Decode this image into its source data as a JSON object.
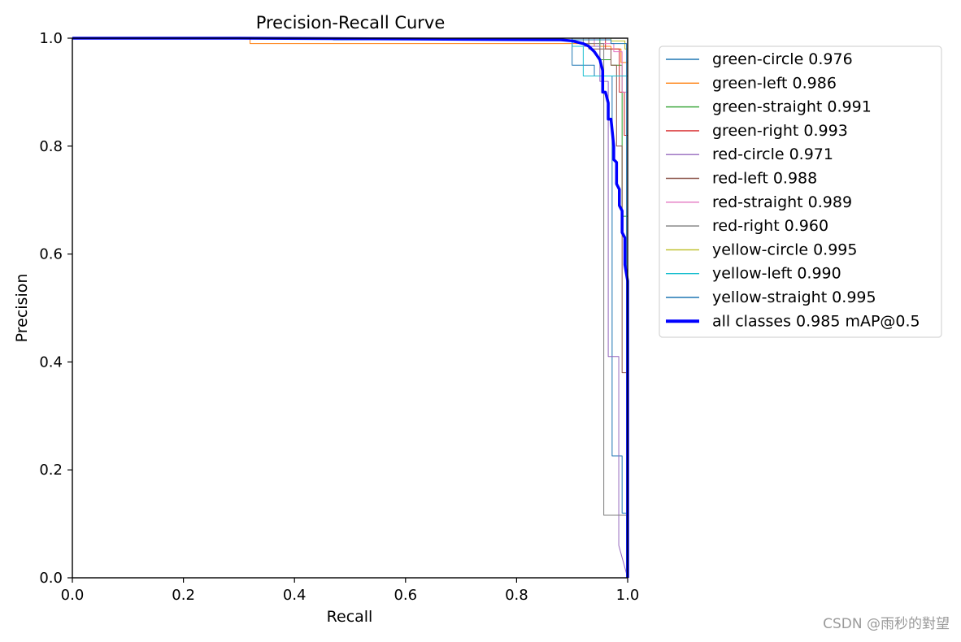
{
  "chart_data": {
    "type": "line",
    "title": "Precision-Recall Curve",
    "xlabel": "Recall",
    "ylabel": "Precision",
    "xlim": [
      0,
      1
    ],
    "ylim": [
      0,
      1
    ],
    "xticks": [
      "0.0",
      "0.2",
      "0.4",
      "0.6",
      "0.8",
      "1.0"
    ],
    "yticks": [
      "0.0",
      "0.2",
      "0.4",
      "0.6",
      "0.8",
      "1.0"
    ],
    "grid": false,
    "legend_position": "outside-right",
    "series": [
      {
        "name": "green-circle",
        "label": "green-circle 0.976",
        "color": "#1f77b4",
        "width": 1,
        "points": [
          [
            0,
            1
          ],
          [
            0.9,
            1
          ],
          [
            0.9,
            0.95
          ],
          [
            0.94,
            0.95
          ],
          [
            0.94,
            0.93
          ],
          [
            0.972,
            0.93
          ],
          [
            0.972,
            0.226
          ],
          [
            0.99,
            0.226
          ],
          [
            0.99,
            0.12
          ],
          [
            1,
            0.12
          ],
          [
            1,
            0
          ]
        ]
      },
      {
        "name": "green-left",
        "label": "green-left 0.986",
        "color": "#ff7f0e",
        "width": 1,
        "points": [
          [
            0,
            1
          ],
          [
            0.32,
            1
          ],
          [
            0.32,
            0.99
          ],
          [
            0.94,
            0.99
          ],
          [
            0.94,
            0.985
          ],
          [
            0.97,
            0.985
          ],
          [
            0.97,
            0.98
          ],
          [
            0.988,
            0.98
          ],
          [
            0.988,
            0.955
          ],
          [
            1,
            0.955
          ],
          [
            1,
            0
          ]
        ]
      },
      {
        "name": "green-straight",
        "label": "green-straight 0.991",
        "color": "#2ca02c",
        "width": 1,
        "points": [
          [
            0,
            1
          ],
          [
            0.95,
            1
          ],
          [
            0.95,
            0.96
          ],
          [
            0.97,
            0.96
          ],
          [
            0.97,
            0.95
          ],
          [
            0.99,
            0.95
          ],
          [
            0.99,
            0.67
          ],
          [
            1,
            0.67
          ],
          [
            1,
            0
          ]
        ]
      },
      {
        "name": "green-right",
        "label": "green-right 0.993",
        "color": "#d62728",
        "width": 1,
        "points": [
          [
            0,
            1
          ],
          [
            0.96,
            1
          ],
          [
            0.96,
            0.98
          ],
          [
            0.985,
            0.98
          ],
          [
            0.985,
            0.9
          ],
          [
            0.994,
            0.9
          ],
          [
            0.994,
            0.82
          ],
          [
            1,
            0.82
          ],
          [
            1,
            0
          ]
        ]
      },
      {
        "name": "red-circle",
        "label": "red-circle 0.971",
        "color": "#9467bd",
        "width": 1,
        "points": [
          [
            0,
            1
          ],
          [
            0.9,
            1
          ],
          [
            0.9,
            0.985
          ],
          [
            0.95,
            0.985
          ],
          [
            0.95,
            0.92
          ],
          [
            0.965,
            0.92
          ],
          [
            0.965,
            0.41
          ],
          [
            0.984,
            0.41
          ],
          [
            0.984,
            0.06
          ],
          [
            1,
            0.0
          ]
        ]
      },
      {
        "name": "red-left",
        "label": "red-left 0.988",
        "color": "#8c564b",
        "width": 1,
        "points": [
          [
            0,
            1
          ],
          [
            0.93,
            1
          ],
          [
            0.93,
            0.98
          ],
          [
            0.97,
            0.98
          ],
          [
            0.97,
            0.95
          ],
          [
            0.98,
            0.95
          ],
          [
            0.98,
            0.8
          ],
          [
            0.99,
            0.8
          ],
          [
            0.99,
            0.38
          ],
          [
            1,
            0.38
          ],
          [
            1,
            0
          ]
        ]
      },
      {
        "name": "red-straight",
        "label": "red-straight 0.989",
        "color": "#e377c2",
        "width": 1,
        "points": [
          [
            0,
            1
          ],
          [
            0.94,
            1
          ],
          [
            0.94,
            0.99
          ],
          [
            0.975,
            0.99
          ],
          [
            0.975,
            0.975
          ],
          [
            0.99,
            0.975
          ],
          [
            0.99,
            0.9
          ],
          [
            1,
            0.9
          ],
          [
            1,
            0
          ]
        ]
      },
      {
        "name": "red-right",
        "label": "red-right 0.960",
        "color": "#7f7f7f",
        "width": 1,
        "points": [
          [
            0,
            1
          ],
          [
            0.92,
            1
          ],
          [
            0.92,
            0.99
          ],
          [
            0.957,
            0.99
          ],
          [
            0.957,
            0.116
          ],
          [
            0.998,
            0.116
          ],
          [
            0.998,
            0
          ],
          [
            1,
            0
          ]
        ]
      },
      {
        "name": "yellow-circle",
        "label": "yellow-circle 0.995",
        "color": "#bcbd22",
        "width": 1,
        "points": [
          [
            0,
            1
          ],
          [
            0.97,
            1
          ],
          [
            0.97,
            0.995
          ],
          [
            0.995,
            0.995
          ],
          [
            0.995,
            0.98
          ],
          [
            1,
            0.98
          ],
          [
            1,
            0
          ]
        ]
      },
      {
        "name": "yellow-left",
        "label": "yellow-left 0.990",
        "color": "#17becf",
        "width": 1,
        "points": [
          [
            0,
            1
          ],
          [
            0.9,
            1
          ],
          [
            0.9,
            0.985
          ],
          [
            0.92,
            0.985
          ],
          [
            0.92,
            0.93
          ],
          [
            1,
            0.93
          ],
          [
            1,
            0
          ]
        ]
      },
      {
        "name": "yellow-straight",
        "label": "yellow-straight 0.995",
        "color": "#1f77b4",
        "width": 1,
        "points": [
          [
            0,
            1
          ],
          [
            0.47,
            1
          ],
          [
            0.47,
            0.997
          ],
          [
            0.97,
            0.997
          ],
          [
            0.97,
            0.99
          ],
          [
            0.998,
            0.99
          ],
          [
            0.998,
            0
          ],
          [
            1,
            0
          ]
        ]
      },
      {
        "name": "all-classes",
        "label": "all classes 0.985 mAP@0.5",
        "color": "#0000ff",
        "width": 3.5,
        "points": [
          [
            0,
            1
          ],
          [
            0.3,
            1
          ],
          [
            0.5,
            0.999
          ],
          [
            0.7,
            0.998
          ],
          [
            0.88,
            0.997
          ],
          [
            0.9,
            0.995
          ],
          [
            0.92,
            0.99
          ],
          [
            0.93,
            0.985
          ],
          [
            0.94,
            0.975
          ],
          [
            0.95,
            0.96
          ],
          [
            0.955,
            0.94
          ],
          [
            0.955,
            0.9
          ],
          [
            0.96,
            0.9
          ],
          [
            0.965,
            0.88
          ],
          [
            0.965,
            0.85
          ],
          [
            0.97,
            0.85
          ],
          [
            0.975,
            0.8
          ],
          [
            0.975,
            0.775
          ],
          [
            0.98,
            0.77
          ],
          [
            0.98,
            0.73
          ],
          [
            0.985,
            0.72
          ],
          [
            0.985,
            0.69
          ],
          [
            0.99,
            0.68
          ],
          [
            0.99,
            0.64
          ],
          [
            0.995,
            0.63
          ],
          [
            0.995,
            0.58
          ],
          [
            1,
            0.55
          ],
          [
            1,
            0
          ]
        ]
      }
    ]
  },
  "watermark": "CSDN @雨秒的對望"
}
